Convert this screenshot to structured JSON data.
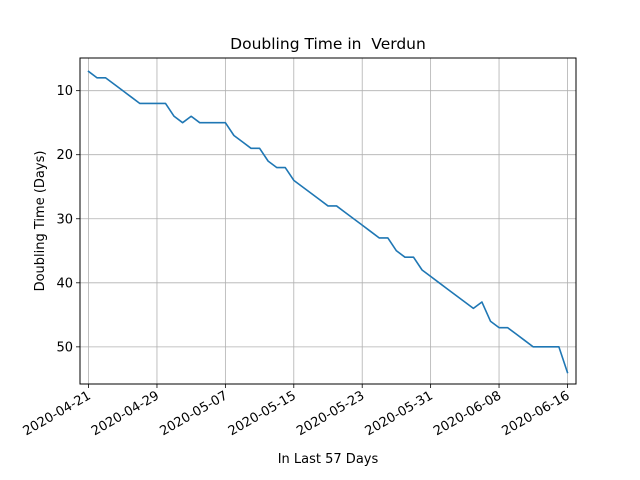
{
  "chart_data": {
    "type": "line",
    "title": "Doubling Time in  Verdun",
    "xlabel": "In Last 57 Days",
    "ylabel": "Doubling Time (Days)",
    "y_inverted": true,
    "ylim": [
      55.8,
      4.9
    ],
    "xlim": [
      "2020-04-20",
      "2020-06-17"
    ],
    "x_ticks": [
      "2020-04-21",
      "2020-04-29",
      "2020-05-07",
      "2020-05-15",
      "2020-05-23",
      "2020-05-31",
      "2020-06-08",
      "2020-06-16"
    ],
    "y_ticks": [
      10,
      20,
      30,
      40,
      50
    ],
    "grid": true,
    "line_color": "#1f77b4",
    "series": [
      {
        "x": [
          "2020-04-21",
          "2020-04-22",
          "2020-04-23",
          "2020-04-24",
          "2020-04-25",
          "2020-04-26",
          "2020-04-27",
          "2020-04-28",
          "2020-04-29",
          "2020-04-30",
          "2020-05-01",
          "2020-05-02",
          "2020-05-03",
          "2020-05-04",
          "2020-05-05",
          "2020-05-06",
          "2020-05-07",
          "2020-05-08",
          "2020-05-09",
          "2020-05-10",
          "2020-05-11",
          "2020-05-12",
          "2020-05-13",
          "2020-05-14",
          "2020-05-15",
          "2020-05-16",
          "2020-05-17",
          "2020-05-18",
          "2020-05-19",
          "2020-05-20",
          "2020-05-21",
          "2020-05-22",
          "2020-05-23",
          "2020-05-24",
          "2020-05-25",
          "2020-05-26",
          "2020-05-27",
          "2020-05-28",
          "2020-05-29",
          "2020-05-30",
          "2020-05-31",
          "2020-06-01",
          "2020-06-02",
          "2020-06-03",
          "2020-06-04",
          "2020-06-05",
          "2020-06-06",
          "2020-06-07",
          "2020-06-08",
          "2020-06-09",
          "2020-06-10",
          "2020-06-11",
          "2020-06-12",
          "2020-06-13",
          "2020-06-14",
          "2020-06-15",
          "2020-06-16"
        ],
        "values": [
          7,
          8,
          8,
          9,
          10,
          11,
          12,
          12,
          12,
          12,
          14,
          15,
          14,
          15,
          15,
          15,
          15,
          17,
          18,
          19,
          19,
          21,
          22,
          22,
          24,
          25,
          26,
          27,
          28,
          28,
          29,
          30,
          31,
          32,
          33,
          33,
          35,
          36,
          36,
          38,
          39,
          40,
          41,
          42,
          43,
          44,
          43,
          46,
          47,
          47,
          48,
          49,
          50,
          50,
          50,
          50,
          54
        ]
      }
    ]
  }
}
